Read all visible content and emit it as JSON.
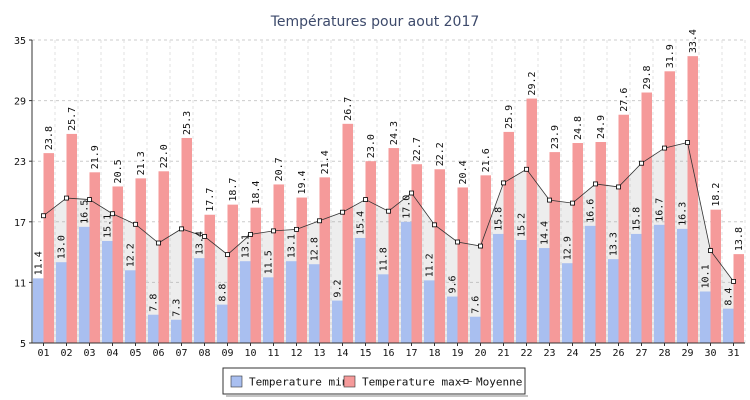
{
  "chart_data": {
    "type": "bar",
    "title": "Températures pour aout 2017",
    "xlabel": "",
    "ylabel": "",
    "categories": [
      "01",
      "02",
      "03",
      "04",
      "05",
      "06",
      "07",
      "08",
      "09",
      "10",
      "11",
      "12",
      "13",
      "14",
      "15",
      "16",
      "17",
      "18",
      "19",
      "20",
      "21",
      "22",
      "23",
      "24",
      "25",
      "26",
      "27",
      "28",
      "29",
      "30",
      "31"
    ],
    "series": [
      {
        "name": "Temperature min",
        "kind": "bar",
        "color": "#a9bff0",
        "values": [
          11.4,
          13.0,
          16.5,
          15.1,
          12.2,
          7.8,
          7.3,
          13.4,
          8.8,
          13.1,
          11.5,
          13.1,
          12.8,
          9.2,
          15.4,
          11.8,
          17.0,
          11.2,
          9.6,
          7.6,
          15.8,
          15.2,
          14.4,
          12.9,
          16.6,
          13.3,
          15.8,
          16.7,
          16.3,
          10.1,
          8.4
        ]
      },
      {
        "name": "Temperature max",
        "kind": "bar",
        "color": "#f59a9a",
        "values": [
          23.8,
          25.7,
          21.9,
          20.5,
          21.3,
          22.0,
          25.3,
          17.7,
          18.7,
          18.4,
          20.7,
          19.4,
          21.4,
          26.7,
          23.0,
          24.3,
          22.7,
          22.2,
          20.4,
          21.6,
          25.9,
          29.2,
          23.9,
          24.8,
          24.9,
          27.6,
          29.8,
          31.9,
          33.4,
          18.2,
          13.8
        ]
      },
      {
        "name": "Moyenne",
        "kind": "line",
        "color": "#333333",
        "values": [
          17.6,
          19.35,
          19.2,
          17.8,
          16.75,
          14.9,
          16.3,
          15.55,
          13.75,
          15.75,
          16.1,
          16.25,
          17.1,
          17.95,
          19.2,
          18.05,
          19.85,
          16.7,
          15.0,
          14.6,
          20.85,
          22.2,
          19.15,
          18.85,
          20.75,
          20.45,
          22.8,
          24.3,
          24.85,
          14.15,
          11.1
        ]
      }
    ],
    "ylim": [
      5,
      35
    ],
    "yticks": [
      5,
      11,
      17,
      23,
      29,
      35
    ],
    "grid": true,
    "legend": "bottom-center"
  }
}
